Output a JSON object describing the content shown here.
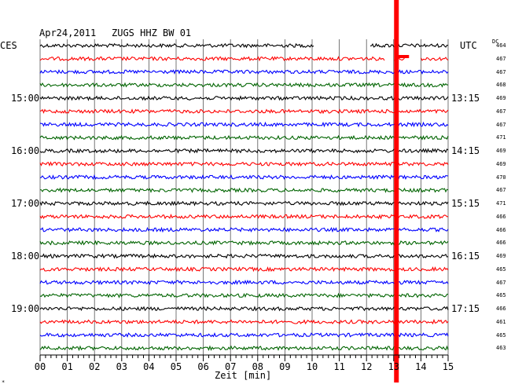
{
  "header": {
    "date": "Apr24,2011",
    "station": "ZUGS HHZ BW 01",
    "left_tz": "CES",
    "right_tz": "UTC",
    "dc_header": "DC",
    "footer_mark": "*"
  },
  "chart_data": {
    "type": "line",
    "title": "Apr24,2011  ZUGS HHZ BW 01",
    "xlabel": "Zeit [min]",
    "x_ticks": [
      "00",
      "01",
      "02",
      "03",
      "04",
      "05",
      "06",
      "07",
      "08",
      "09",
      "10",
      "11",
      "12",
      "13",
      "14",
      "15"
    ],
    "xlim": [
      0,
      15
    ],
    "grid": true,
    "trace_minutes": 15,
    "trace_count": 24,
    "trace_colors": [
      "#000000",
      "#ff0000",
      "#0000ff",
      "#006400"
    ],
    "event_minute": 13.1,
    "event_color": "#ff0000",
    "left_time_labels": [
      {
        "row": 4,
        "label": "15:00"
      },
      {
        "row": 8,
        "label": "16:00"
      },
      {
        "row": 12,
        "label": "17:00"
      },
      {
        "row": 16,
        "label": "18:00"
      },
      {
        "row": 20,
        "label": "19:00"
      }
    ],
    "right_time_labels": [
      {
        "row": 4,
        "label": "13:15"
      },
      {
        "row": 8,
        "label": "14:15"
      },
      {
        "row": 12,
        "label": "15:15"
      },
      {
        "row": 16,
        "label": "16:15"
      },
      {
        "row": 20,
        "label": "17:15"
      }
    ],
    "dc_offsets": [
      464,
      467,
      467,
      468,
      469,
      467,
      467,
      471,
      469,
      469,
      470,
      467,
      471,
      466,
      466,
      466,
      469,
      465,
      467,
      465,
      466,
      461,
      465,
      463
    ],
    "gaps": [
      {
        "row": 0,
        "from": 10.1,
        "to": 12.1
      },
      {
        "row": 1,
        "from": 12.7,
        "to": 13.0
      },
      {
        "row": 1,
        "from": 13.4,
        "to": 14.0
      }
    ]
  }
}
